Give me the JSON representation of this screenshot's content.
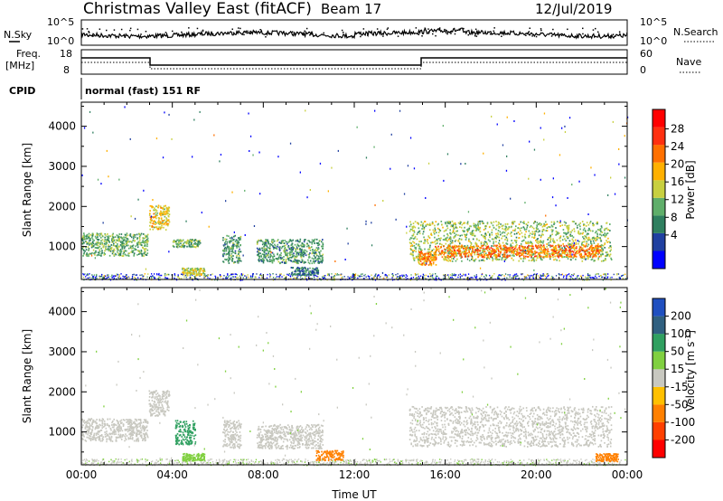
{
  "header": {
    "station": "Christmas Valley East (fitACF)",
    "beam": "Beam 17",
    "date": "12/Jul/2019"
  },
  "noise_panel": {
    "left_label": "N.Sky",
    "right_label": "N.Search",
    "left_ticks": [
      "10^5",
      "10^0"
    ],
    "right_ticks": [
      "10^5",
      "10^0"
    ]
  },
  "freq_panel": {
    "left_label_1": "Freq.",
    "left_label_2": "[MHz]",
    "right_label": "Nave",
    "left_ticks": [
      "18",
      "8"
    ],
    "right_ticks": [
      "60",
      "0"
    ]
  },
  "cpid": {
    "label": "CPID",
    "value": "normal (fast) 151 RF"
  },
  "colors": {
    "power_scale": [
      "#0000ff",
      "#2040a0",
      "#2f7f5f",
      "#5fae6a",
      "#c8d040",
      "#ffb000",
      "#ff7000",
      "#ff3010",
      "#ff0000"
    ],
    "velocity_scale": [
      "#2050c0",
      "#306080",
      "#30a060",
      "#80d040",
      "#c8c8c0",
      "#ffc000",
      "#ff8000",
      "#ff4000",
      "#ff0000"
    ]
  },
  "chart_data": [
    {
      "type": "heatmap",
      "panel": "power",
      "ylabel": "Slant Range [km]",
      "xlabel": "",
      "ylim": [
        180,
        4600
      ],
      "yticks": [
        "4000",
        "3000",
        "2000",
        "1000"
      ],
      "colorbar_label": "Power [dB]",
      "colorbar_ticks": [
        "28",
        "24",
        "20",
        "16",
        "12",
        "8",
        "4"
      ],
      "bands": [
        {
          "t0": 0.0,
          "t1": 2.9,
          "r0": 780,
          "r1": 1350,
          "v": 14
        },
        {
          "t0": 2.95,
          "t1": 3.85,
          "r0": 1420,
          "r1": 2050,
          "v": 20
        },
        {
          "t0": 4.0,
          "t1": 5.2,
          "r0": 1000,
          "r1": 1200,
          "v": 14
        },
        {
          "t0": 4.4,
          "t1": 5.4,
          "r0": 300,
          "r1": 480,
          "v": 18
        },
        {
          "t0": 6.2,
          "t1": 7.0,
          "r0": 600,
          "r1": 1300,
          "v": 12
        },
        {
          "t0": 7.7,
          "t1": 10.6,
          "r0": 600,
          "r1": 1200,
          "v": 12
        },
        {
          "t0": 9.2,
          "t1": 10.4,
          "r0": 300,
          "r1": 500,
          "v": 10
        },
        {
          "t0": 14.4,
          "t1": 23.3,
          "r0": 650,
          "r1": 1650,
          "v": 16
        },
        {
          "t0": 15.5,
          "t1": 22.8,
          "r0": 750,
          "r1": 1050,
          "v": 26
        },
        {
          "t0": 14.8,
          "t1": 15.6,
          "r0": 550,
          "r1": 900,
          "v": 24
        }
      ]
    },
    {
      "type": "heatmap",
      "panel": "velocity",
      "ylabel": "Slant Range [km]",
      "xlabel": "Time UT",
      "ylim": [
        180,
        4600
      ],
      "yticks": [
        "4000",
        "3000",
        "2000",
        "1000"
      ],
      "xticks": [
        "00:00",
        "04:00",
        "08:00",
        "12:00",
        "16:00",
        "20:00",
        "00:00"
      ],
      "colorbar_label": "Velocity [m s^-1]",
      "colorbar_ticks": [
        "200",
        "100",
        "50",
        "15",
        "-15",
        "-50",
        "-100",
        "-200"
      ],
      "bands": [
        {
          "t0": 0.0,
          "t1": 2.9,
          "r0": 780,
          "r1": 1350,
          "v": 0
        },
        {
          "t0": 2.95,
          "t1": 3.85,
          "r0": 1420,
          "r1": 2050,
          "v": 0
        },
        {
          "t0": 4.1,
          "t1": 5.0,
          "r0": 700,
          "r1": 1300,
          "v": 60
        },
        {
          "t0": 4.4,
          "t1": 5.4,
          "r0": 300,
          "r1": 480,
          "v": 20
        },
        {
          "t0": 6.2,
          "t1": 7.0,
          "r0": 600,
          "r1": 1300,
          "v": 0
        },
        {
          "t0": 7.7,
          "t1": 10.6,
          "r0": 600,
          "r1": 1200,
          "v": 0
        },
        {
          "t0": 10.3,
          "t1": 11.5,
          "r0": 300,
          "r1": 550,
          "v": -60
        },
        {
          "t0": 14.4,
          "t1": 23.3,
          "r0": 650,
          "r1": 1650,
          "v": 0
        },
        {
          "t0": 22.6,
          "t1": 23.6,
          "r0": 280,
          "r1": 480,
          "v": -40
        }
      ]
    }
  ]
}
